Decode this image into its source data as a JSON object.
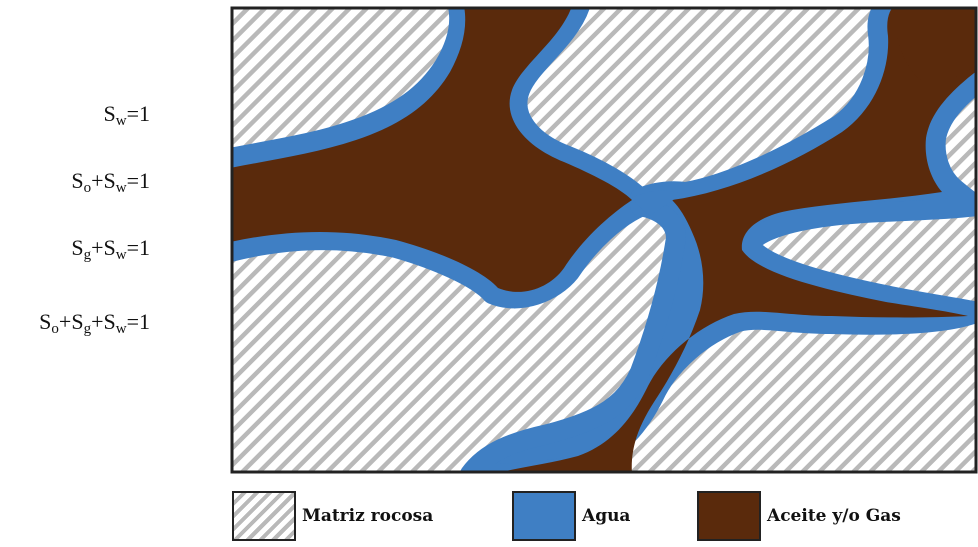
{
  "saturation_equations": [
    {
      "base1": "S",
      "sub1": "w",
      "rest": "=1"
    },
    {
      "base1": "S",
      "sub1": "o",
      "base2": "+S",
      "sub2": "w",
      "rest": "=1"
    },
    {
      "base1": "S",
      "sub1": "g",
      "base2": "+S",
      "sub2": "w",
      "rest": "=1"
    },
    {
      "base1": "S",
      "sub1": "o",
      "base2": "+S",
      "sub2": "g",
      "base3": "+S",
      "sub3": "w",
      "rest": "=1"
    }
  ],
  "legend": {
    "rock_label": "Matriz rocosa",
    "water_label": "Agua",
    "oil_label": "Aceite y/o Gas"
  },
  "colors": {
    "water": "#3f7fc4",
    "oil_gas": "#5a2a0c",
    "rock_stripe": "#b9b9b9",
    "border": "#222222"
  }
}
